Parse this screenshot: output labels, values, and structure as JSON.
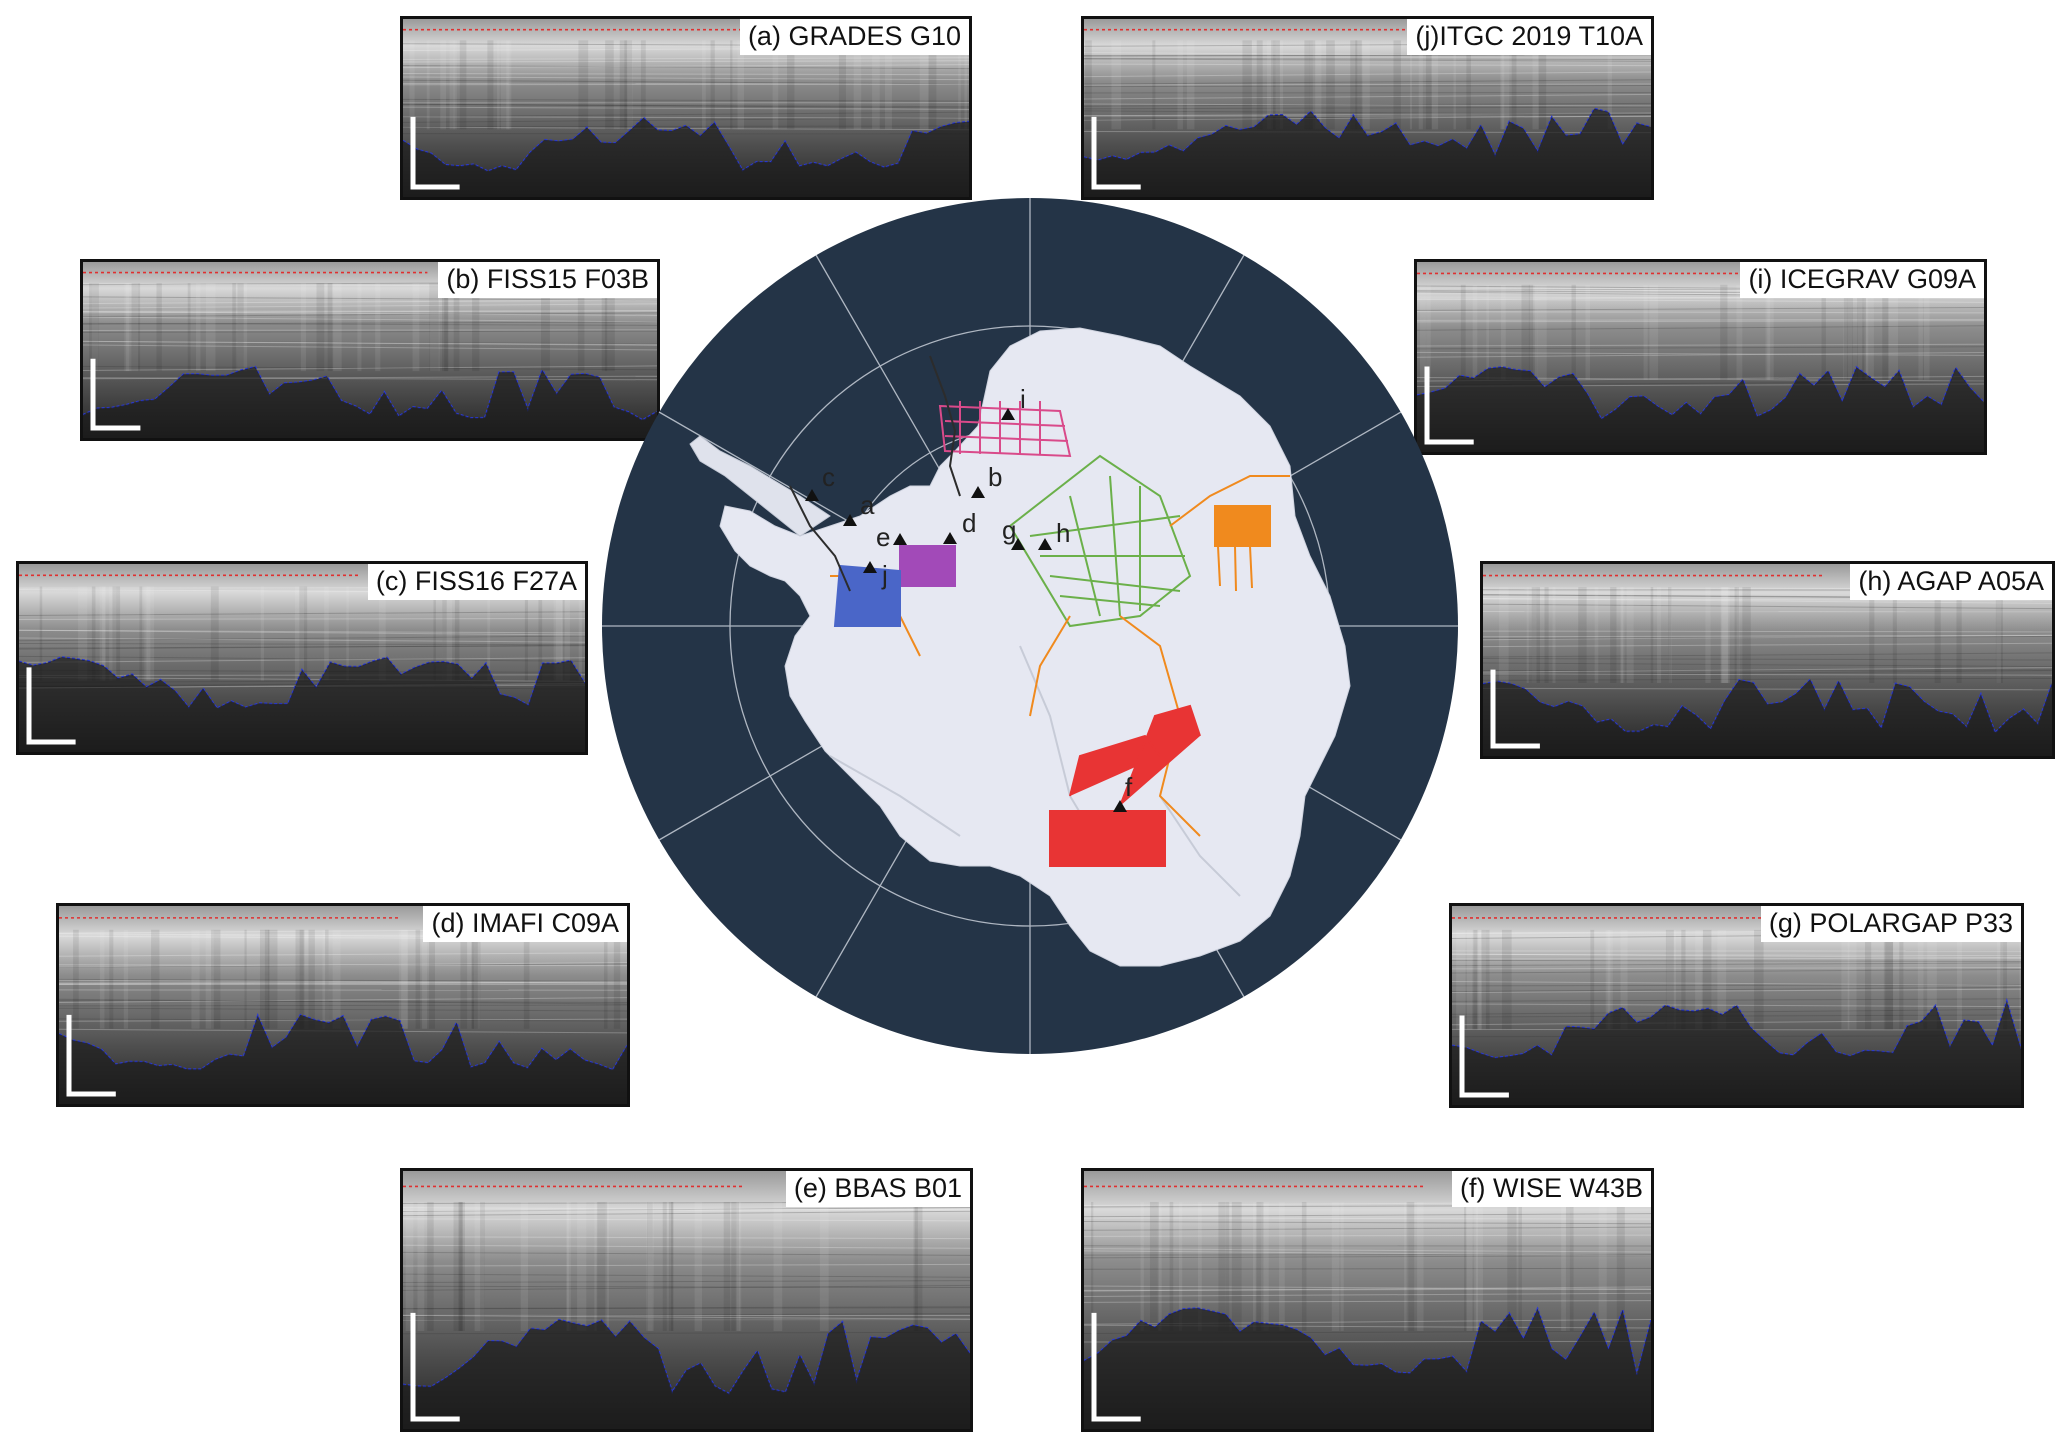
{
  "panels": [
    {
      "id": "a",
      "label": "(a) GRADES G10"
    },
    {
      "id": "j",
      "label": "(j)ITGC 2019 T10A"
    },
    {
      "id": "b",
      "label": "(b) FISS15 F03B"
    },
    {
      "id": "i",
      "label": "(i) ICEGRAV G09A"
    },
    {
      "id": "c",
      "label": "(c) FISS16 F27A"
    },
    {
      "id": "h",
      "label": "(h) AGAP A05A"
    },
    {
      "id": "d",
      "label": "(d) IMAFI C09A"
    },
    {
      "id": "g",
      "label": "(g) POLARGAP P33"
    },
    {
      "id": "e",
      "label": "(e) BBAS B01"
    },
    {
      "id": "f",
      "label": "(f) WISE W43B"
    }
  ],
  "map": {
    "site_markers": [
      "a",
      "b",
      "c",
      "d",
      "e",
      "f",
      "g",
      "h",
      "i",
      "j"
    ],
    "colors": {
      "ocean": "#243447",
      "ice": "#e6e8f2",
      "graticule": "#c8ced8",
      "surface_pick": "#e03030",
      "bed_pick": "#2a3ad8"
    }
  }
}
